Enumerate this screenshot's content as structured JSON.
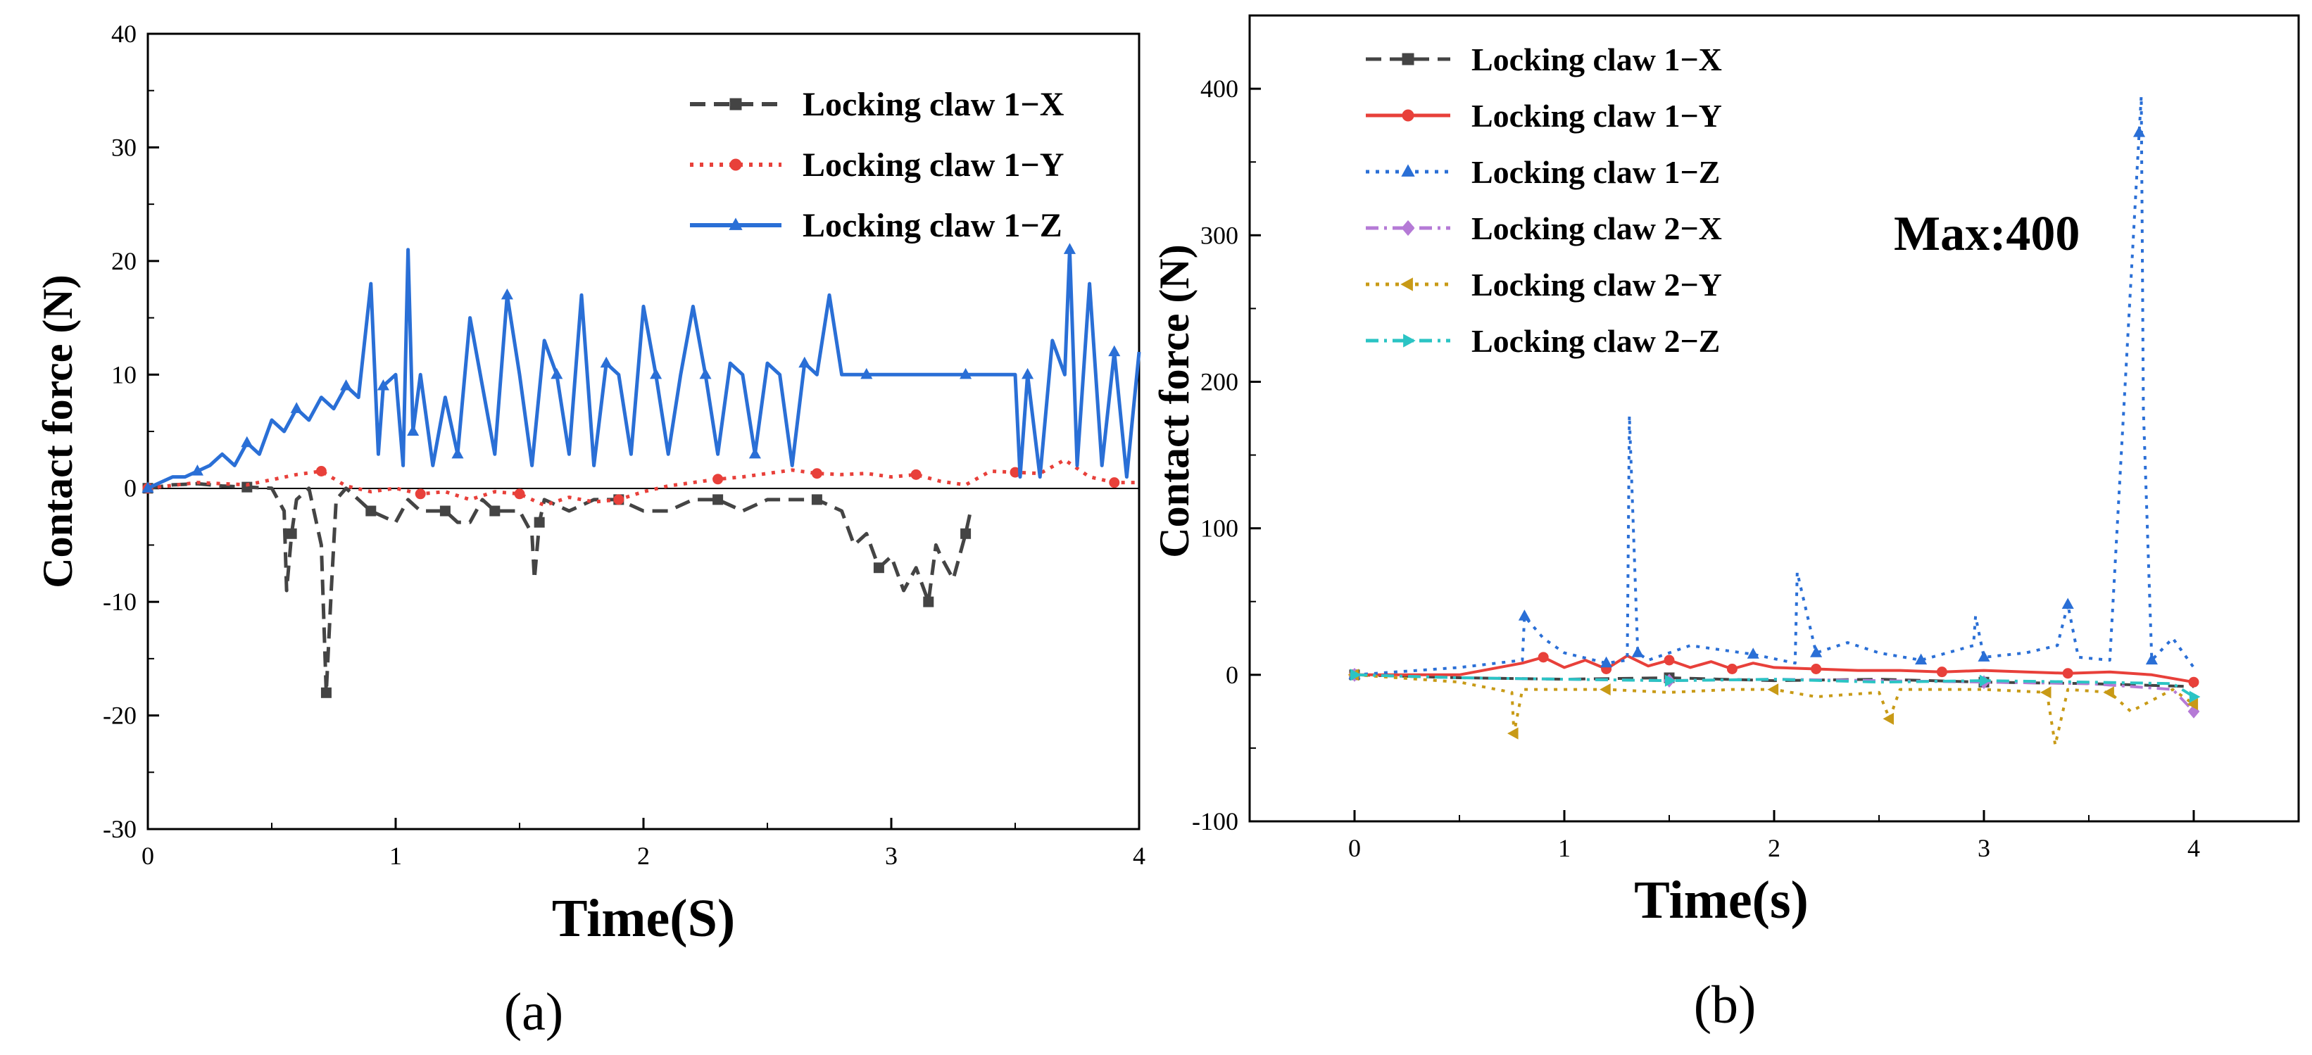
{
  "chart_data": [
    {
      "panel_label": "(a)",
      "type": "line",
      "xlabel": "Time(S)",
      "ylabel": "Contact force  (N)",
      "xlim": [
        0,
        4
      ],
      "ylim": [
        -30,
        40
      ],
      "xticks": [
        0,
        1,
        2,
        3,
        4
      ],
      "yticks": [
        -30,
        -20,
        -10,
        0,
        10,
        20,
        30,
        40
      ],
      "grid": false,
      "legend_position": "top-right",
      "series": [
        {
          "name": "Locking claw 1−X",
          "color": "#444444",
          "style": "dash",
          "marker": "square",
          "x": [
            0,
            0.1,
            0.2,
            0.3,
            0.4,
            0.5,
            0.55,
            0.56,
            0.58,
            0.6,
            0.65,
            0.7,
            0.72,
            0.74,
            0.76,
            0.8,
            0.9,
            1.0,
            1.05,
            1.1,
            1.2,
            1.25,
            1.3,
            1.35,
            1.4,
            1.5,
            1.55,
            1.56,
            1.58,
            1.6,
            1.7,
            1.8,
            1.9,
            2.0,
            2.1,
            2.2,
            2.3,
            2.4,
            2.5,
            2.6,
            2.7,
            2.8,
            2.85,
            2.9,
            2.95,
            3.0,
            3.05,
            3.1,
            3.15,
            3.18,
            3.2,
            3.25,
            3.3,
            3.32
          ],
          "values": [
            0,
            0.3,
            0.4,
            0.2,
            0.1,
            0,
            -2,
            -9,
            -4,
            -1,
            0,
            -5,
            -18,
            -9,
            -1,
            0,
            -2,
            -3,
            -1,
            -2,
            -2,
            -3,
            -3,
            -1,
            -2,
            -2,
            -4,
            -8,
            -3,
            -1,
            -2,
            -1,
            -1,
            -2,
            -2,
            -1,
            -1,
            -2,
            -1,
            -1,
            -1,
            -2,
            -5,
            -4,
            -7,
            -6,
            -9,
            -7,
            -10,
            -5,
            -6,
            -8,
            -4,
            -2
          ]
        },
        {
          "name": "Locking claw 1−Y",
          "color": "#e8403a",
          "style": "dot",
          "marker": "circle",
          "x": [
            0,
            0.2,
            0.4,
            0.6,
            0.7,
            0.8,
            0.9,
            1.0,
            1.1,
            1.2,
            1.3,
            1.4,
            1.5,
            1.6,
            1.7,
            1.8,
            1.9,
            2.0,
            2.1,
            2.2,
            2.3,
            2.4,
            2.5,
            2.6,
            2.7,
            2.8,
            2.9,
            3.0,
            3.1,
            3.2,
            3.3,
            3.4,
            3.5,
            3.6,
            3.7,
            3.8,
            3.9,
            4.0
          ],
          "values": [
            0,
            0.5,
            0.3,
            1.2,
            1.5,
            0.2,
            -0.3,
            0,
            -0.5,
            -0.3,
            -1.0,
            -0.3,
            -0.5,
            -1.5,
            -0.8,
            -1.2,
            -1.0,
            -0.3,
            0.2,
            0.5,
            0.8,
            1.0,
            1.3,
            1.6,
            1.3,
            1.2,
            1.3,
            1.0,
            1.2,
            0.6,
            0.3,
            1.5,
            1.4,
            1.3,
            2.5,
            1.0,
            0.5,
            0.5
          ]
        },
        {
          "name": "Locking claw 1−Z",
          "color": "#2a6fd6",
          "style": "solid",
          "marker": "triangle",
          "x": [
            0,
            0.05,
            0.1,
            0.15,
            0.2,
            0.25,
            0.3,
            0.35,
            0.4,
            0.45,
            0.5,
            0.55,
            0.6,
            0.65,
            0.7,
            0.75,
            0.8,
            0.85,
            0.9,
            0.93,
            0.95,
            1.0,
            1.03,
            1.05,
            1.07,
            1.1,
            1.15,
            1.2,
            1.25,
            1.3,
            1.35,
            1.4,
            1.45,
            1.5,
            1.55,
            1.6,
            1.65,
            1.7,
            1.75,
            1.8,
            1.85,
            1.9,
            1.95,
            2.0,
            2.05,
            2.1,
            2.15,
            2.2,
            2.25,
            2.3,
            2.35,
            2.4,
            2.45,
            2.5,
            2.55,
            2.6,
            2.65,
            2.7,
            2.75,
            2.8,
            2.9,
            3.0,
            3.1,
            3.2,
            3.3,
            3.4,
            3.5,
            3.52,
            3.55,
            3.6,
            3.65,
            3.7,
            3.72,
            3.75,
            3.8,
            3.85,
            3.9,
            3.95,
            4.0
          ],
          "values": [
            0,
            0.5,
            1,
            1,
            1.5,
            2,
            3,
            2,
            4,
            3,
            6,
            5,
            7,
            6,
            8,
            7,
            9,
            8,
            18,
            3,
            9,
            10,
            2,
            21,
            5,
            10,
            2,
            8,
            3,
            15,
            9,
            3,
            17,
            10,
            2,
            13,
            10,
            3,
            17,
            2,
            11,
            10,
            3,
            16,
            10,
            3,
            10,
            16,
            10,
            3,
            11,
            10,
            3,
            11,
            10,
            2,
            11,
            10,
            17,
            10,
            10,
            10,
            10,
            10,
            10,
            10,
            10,
            1,
            10,
            1,
            13,
            10,
            21,
            2,
            18,
            2,
            12,
            1,
            12
          ]
        }
      ]
    },
    {
      "panel_label": "(b)",
      "type": "line",
      "xlabel": "Time(s)",
      "ylabel": "Contact force  (N)",
      "annotation": "Max:400",
      "xlim": [
        -0.5,
        4.5
      ],
      "ylim": [
        -100,
        450
      ],
      "xticks": [
        0,
        1,
        2,
        3,
        4
      ],
      "yticks": [
        -100,
        0,
        100,
        200,
        300,
        400
      ],
      "grid": false,
      "legend_position": "top-left",
      "series": [
        {
          "name": "Locking claw 1−X",
          "color": "#444444",
          "style": "dash",
          "marker": "square",
          "x": [
            0,
            0.5,
            1.0,
            1.5,
            2.0,
            2.5,
            3.0,
            3.5,
            4.0
          ],
          "values": [
            0,
            -2,
            -3,
            -2,
            -4,
            -3,
            -5,
            -6,
            -8
          ]
        },
        {
          "name": "Locking claw 1−Y",
          "color": "#e8403a",
          "style": "solid",
          "marker": "circle",
          "x": [
            0,
            0.5,
            0.8,
            0.9,
            1.0,
            1.1,
            1.2,
            1.3,
            1.4,
            1.5,
            1.6,
            1.7,
            1.8,
            1.9,
            2.0,
            2.2,
            2.4,
            2.6,
            2.8,
            3.0,
            3.2,
            3.4,
            3.6,
            3.8,
            4.0
          ],
          "values": [
            0,
            0,
            8,
            12,
            5,
            10,
            4,
            13,
            6,
            10,
            5,
            9,
            4,
            8,
            5,
            4,
            3,
            3,
            2,
            3,
            2,
            1,
            2,
            0,
            -5
          ]
        },
        {
          "name": "Locking claw 1−Z",
          "color": "#2a6fd6",
          "style": "dot",
          "marker": "triangle",
          "x": [
            0,
            0.5,
            0.8,
            0.81,
            0.9,
            1.0,
            1.2,
            1.3,
            1.31,
            1.35,
            1.4,
            1.6,
            1.9,
            2.1,
            2.11,
            2.2,
            2.35,
            2.5,
            2.7,
            2.95,
            2.96,
            3.0,
            3.2,
            3.35,
            3.4,
            3.45,
            3.6,
            3.74,
            3.75,
            3.76,
            3.8,
            3.9,
            4.0
          ],
          "values": [
            0,
            5,
            10,
            40,
            25,
            15,
            8,
            10,
            177,
            15,
            10,
            20,
            14,
            8,
            70,
            15,
            22,
            15,
            10,
            20,
            40,
            12,
            15,
            20,
            48,
            12,
            10,
            370,
            395,
            181,
            10,
            25,
            5
          ]
        },
        {
          "name": "Locking claw 2−X",
          "color": "#b57ad6",
          "style": "dashdot",
          "marker": "diamond",
          "x": [
            0,
            0.5,
            1.0,
            1.5,
            2.0,
            2.5,
            3.0,
            3.5,
            3.9,
            4.0
          ],
          "values": [
            0,
            -2,
            -3,
            -4,
            -3,
            -4,
            -5,
            -6,
            -10,
            -25
          ]
        },
        {
          "name": "Locking claw 2−Y",
          "color": "#c89a16",
          "style": "dot",
          "marker": "triangle-left",
          "x": [
            0,
            0.5,
            0.75,
            0.76,
            0.8,
            1.0,
            1.2,
            1.5,
            1.8,
            2.0,
            2.2,
            2.5,
            2.55,
            2.6,
            3.0,
            3.3,
            3.34,
            3.4,
            3.6,
            3.7,
            3.9,
            4.0
          ],
          "values": [
            0,
            -5,
            -12,
            -40,
            -10,
            -10,
            -10,
            -12,
            -10,
            -10,
            -15,
            -12,
            -30,
            -10,
            -10,
            -12,
            -48,
            -10,
            -12,
            -25,
            -10,
            -20
          ]
        },
        {
          "name": "Locking claw 2−Z",
          "color": "#2bc4c4",
          "style": "dashdot",
          "marker": "triangle-right",
          "x": [
            0,
            0.5,
            1.0,
            1.5,
            2.0,
            2.5,
            3.0,
            3.5,
            3.9,
            4.0
          ],
          "values": [
            0,
            -2,
            -3,
            -4,
            -3,
            -5,
            -4,
            -5,
            -6,
            -15
          ]
        }
      ]
    }
  ]
}
